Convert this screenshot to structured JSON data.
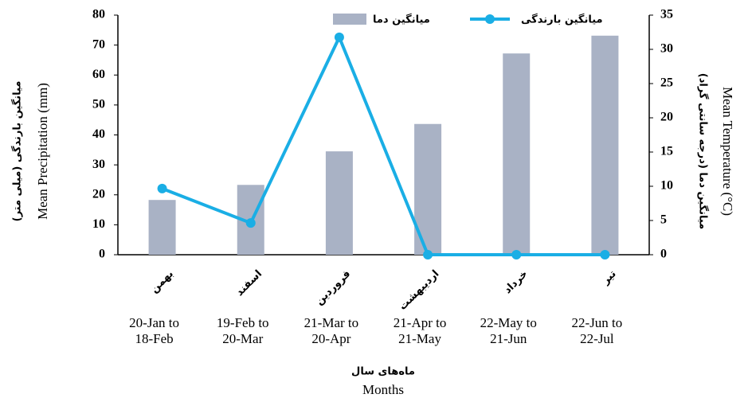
{
  "chart_data": {
    "type": "bar_line",
    "categories": [
      "بهمن",
      "اسفند",
      "فروردین",
      "اردیبهشت",
      "خرداد",
      "تیر"
    ],
    "category_ranges": [
      [
        "20-Jan to",
        "18-Feb"
      ],
      [
        "19-Feb to",
        "20-Mar"
      ],
      [
        "21-Mar to",
        "20-Apr"
      ],
      [
        "21-Apr to",
        "21-May"
      ],
      [
        "22-May to",
        "21-Jun"
      ],
      [
        "22-Jun to",
        "22-Jul"
      ]
    ],
    "series": [
      {
        "name": "میانگین دما",
        "type": "bar",
        "axis": "y2",
        "color": "#a9b2c5",
        "values": [
          8.0,
          10.2,
          15.1,
          19.1,
          29.4,
          32.0
        ]
      },
      {
        "name": "میانگین بارندگی",
        "type": "line",
        "axis": "y",
        "color": "#1aaee5",
        "values": [
          22.1,
          10.6,
          72.6,
          0,
          0,
          0
        ]
      }
    ],
    "ylim": [
      0,
      80
    ],
    "yticks": [
      0,
      10,
      20,
      30,
      40,
      50,
      60,
      70,
      80
    ],
    "y2lim": [
      0,
      35
    ],
    "y2ticks": [
      0,
      5,
      10,
      15,
      20,
      25,
      30,
      35
    ],
    "y_label": [
      "میانگین بارندگی (میلی متر)",
      "Mean Precipitation (mm)"
    ],
    "y2_label": [
      "میانگین دما (درجه سانتی گراد)",
      "Mean Temperature (°C)"
    ],
    "x_label": [
      "ماه‌های سال",
      "Months"
    ],
    "legend": "top"
  }
}
